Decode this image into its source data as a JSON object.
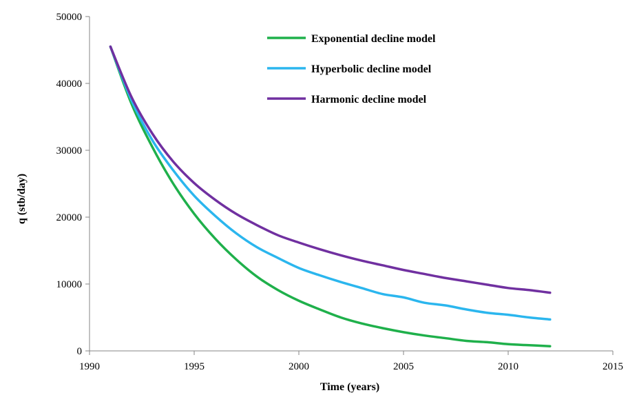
{
  "chart_data": {
    "type": "line",
    "title": "",
    "xlabel": "Time (years)",
    "ylabel": "q (stb/day)",
    "xlim": [
      1990,
      2015
    ],
    "ylim": [
      0,
      50000
    ],
    "xticks": [
      1990,
      1995,
      2000,
      2005,
      2010,
      2015
    ],
    "yticks": [
      0,
      10000,
      20000,
      30000,
      40000,
      50000
    ],
    "grid": false,
    "legend_position": "top-center",
    "series": [
      {
        "name": "Exponential decline model",
        "color": "#1fb04b",
        "x": [
          1991,
          1992,
          1993,
          1994,
          1995,
          1996,
          1997,
          1998,
          1999,
          2000,
          2001,
          2002,
          2003,
          2004,
          2005,
          2006,
          2007,
          2008,
          2009,
          2010,
          2011,
          2012
        ],
        "y": [
          45500,
          37000,
          30500,
          25000,
          20500,
          16800,
          13700,
          11100,
          9100,
          7500,
          6200,
          5000,
          4100,
          3400,
          2800,
          2300,
          1900,
          1500,
          1300,
          1000,
          850,
          700
        ]
      },
      {
        "name": "Hyperbolic decline model",
        "color": "#2bb6ee",
        "x": [
          1991,
          1992,
          1993,
          1994,
          1995,
          1996,
          1997,
          1998,
          1999,
          2000,
          2001,
          2002,
          2003,
          2004,
          2005,
          2006,
          2007,
          2008,
          2009,
          2010,
          2011,
          2012
        ],
        "y": [
          45500,
          37500,
          31500,
          27000,
          23200,
          20200,
          17600,
          15500,
          13900,
          12400,
          11300,
          10300,
          9400,
          8500,
          8000,
          7200,
          6800,
          6200,
          5700,
          5400,
          5000,
          4700
        ]
      },
      {
        "name": "Harmonic decline model",
        "color": "#7030a0",
        "x": [
          1991,
          1992,
          1993,
          1994,
          1995,
          1996,
          1997,
          1998,
          1999,
          2000,
          2001,
          2002,
          2003,
          2004,
          2005,
          2006,
          2007,
          2008,
          2009,
          2010,
          2011,
          2012
        ],
        "y": [
          45500,
          38000,
          32500,
          28300,
          25100,
          22600,
          20500,
          18800,
          17300,
          16200,
          15200,
          14300,
          13500,
          12800,
          12100,
          11500,
          10900,
          10400,
          9900,
          9400,
          9100,
          8700
        ]
      }
    ]
  }
}
